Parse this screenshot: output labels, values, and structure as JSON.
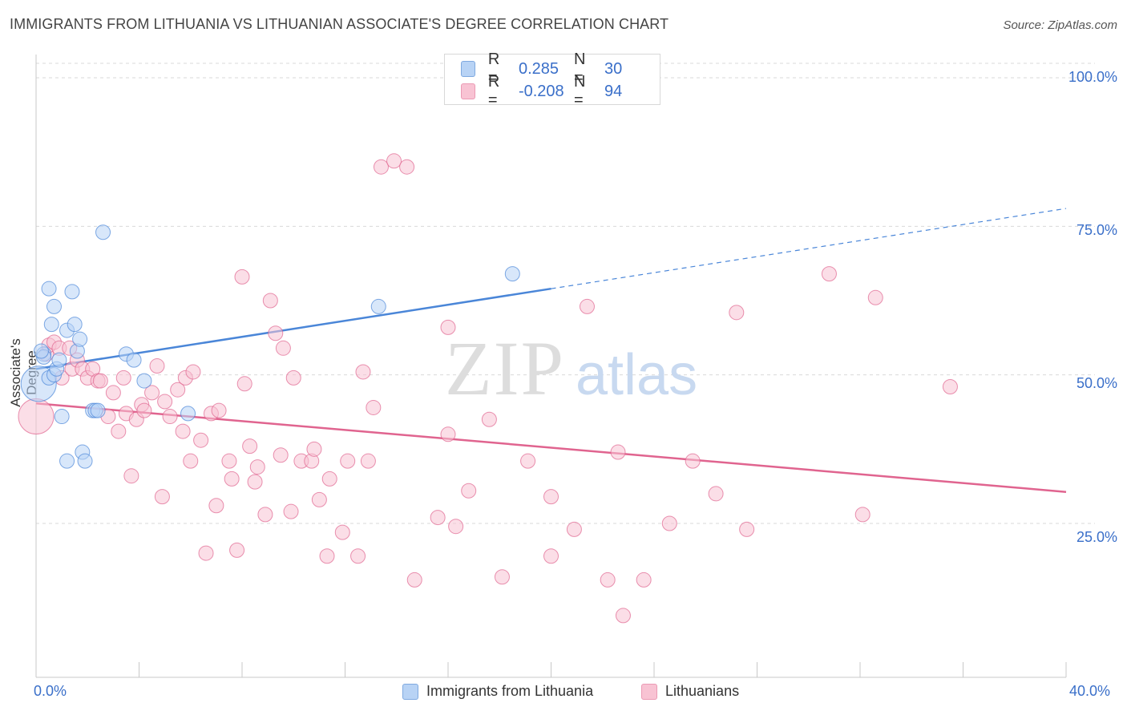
{
  "title": "IMMIGRANTS FROM LITHUANIA VS LITHUANIAN ASSOCIATE'S DEGREE CORRELATION CHART",
  "source": "Source: ZipAtlas.com",
  "watermark": {
    "zip": "ZIP",
    "atlas": "atlas"
  },
  "legend": {
    "rows": [
      {
        "r_label": "R =",
        "r_value": "0.285",
        "n_label": "N =",
        "n_value": "30",
        "color": "#b8d3f5"
      },
      {
        "r_label": "R =",
        "r_value": "-0.208",
        "n_label": "N =",
        "n_value": "94",
        "color": "#f8c3d3"
      }
    ]
  },
  "bottom_legend": [
    {
      "label": "Immigrants from Lithuania",
      "color": "#b8d3f5"
    },
    {
      "label": "Lithuanians",
      "color": "#f8c3d3"
    }
  ],
  "chart_data": {
    "type": "scatter",
    "xlabel": "",
    "ylabel": "Associate's Degree",
    "xlim": [
      0,
      40
    ],
    "ylim": [
      0,
      100
    ],
    "x_tick_labels": [
      "0.0%",
      "40.0%"
    ],
    "y_tick_labels": [
      "100.0%",
      "75.0%",
      "50.0%",
      "25.0%"
    ],
    "y_tick_values": [
      100,
      75,
      50,
      25
    ],
    "grid": true,
    "series": [
      {
        "name": "Immigrants from Lithuania",
        "color": "#4a86d8",
        "fill": "#b8d3f5",
        "points": [
          [
            0.1,
            48.5
          ],
          [
            0.3,
            53.5
          ],
          [
            0.3,
            53.0
          ],
          [
            0.5,
            64.5
          ],
          [
            0.5,
            49.5
          ],
          [
            0.6,
            58.5
          ],
          [
            0.7,
            61.5
          ],
          [
            0.7,
            50.0
          ],
          [
            0.8,
            51.0
          ],
          [
            0.9,
            52.5
          ],
          [
            1.0,
            43.0
          ],
          [
            1.2,
            35.5
          ],
          [
            1.2,
            57.5
          ],
          [
            1.4,
            64.0
          ],
          [
            1.5,
            58.5
          ],
          [
            1.6,
            54.0
          ],
          [
            1.7,
            56.0
          ],
          [
            1.8,
            37.0
          ],
          [
            1.9,
            35.5
          ],
          [
            2.2,
            44.0
          ],
          [
            2.3,
            44.0
          ],
          [
            2.4,
            44.0
          ],
          [
            2.6,
            74.0
          ],
          [
            3.5,
            53.5
          ],
          [
            3.8,
            52.5
          ],
          [
            5.9,
            43.5
          ],
          [
            4.2,
            49.0
          ],
          [
            13.3,
            61.5
          ],
          [
            18.5,
            67.0
          ],
          [
            0.2,
            54.0
          ]
        ],
        "trend": {
          "x0": 0,
          "y0": 51,
          "x_solid_end": 20,
          "y_solid_end": 64.5,
          "x1": 40,
          "y1": 78
        }
      },
      {
        "name": "Lithuanians",
        "color": "#e0648f",
        "fill": "#f8c3d3",
        "points": [
          [
            0.0,
            43.0
          ],
          [
            0.4,
            53.5
          ],
          [
            0.5,
            55.0
          ],
          [
            0.7,
            55.5
          ],
          [
            0.9,
            54.5
          ],
          [
            1.0,
            49.5
          ],
          [
            1.3,
            54.5
          ],
          [
            1.4,
            51.0
          ],
          [
            1.6,
            52.5
          ],
          [
            1.8,
            51.0
          ],
          [
            2.0,
            49.5
          ],
          [
            2.2,
            51.0
          ],
          [
            2.4,
            49.0
          ],
          [
            2.5,
            49.0
          ],
          [
            2.8,
            43.0
          ],
          [
            3.0,
            47.0
          ],
          [
            3.2,
            40.5
          ],
          [
            3.4,
            49.5
          ],
          [
            3.5,
            43.5
          ],
          [
            3.7,
            33.0
          ],
          [
            3.9,
            42.5
          ],
          [
            4.1,
            45.0
          ],
          [
            4.2,
            44.0
          ],
          [
            4.5,
            47.0
          ],
          [
            4.7,
            51.5
          ],
          [
            4.9,
            29.5
          ],
          [
            5.0,
            45.5
          ],
          [
            5.2,
            43.0
          ],
          [
            5.5,
            47.5
          ],
          [
            5.7,
            40.5
          ],
          [
            5.8,
            49.5
          ],
          [
            6.0,
            35.5
          ],
          [
            6.1,
            50.5
          ],
          [
            6.4,
            39.0
          ],
          [
            6.6,
            20.0
          ],
          [
            6.8,
            43.5
          ],
          [
            7.0,
            28.0
          ],
          [
            7.1,
            44.0
          ],
          [
            7.5,
            35.5
          ],
          [
            7.6,
            32.5
          ],
          [
            7.8,
            20.5
          ],
          [
            8.0,
            66.5
          ],
          [
            8.1,
            48.5
          ],
          [
            8.3,
            38.0
          ],
          [
            8.5,
            32.0
          ],
          [
            8.6,
            34.5
          ],
          [
            8.9,
            26.5
          ],
          [
            9.1,
            62.5
          ],
          [
            9.3,
            57.0
          ],
          [
            9.5,
            36.5
          ],
          [
            9.6,
            54.5
          ],
          [
            9.9,
            27.0
          ],
          [
            10.0,
            49.5
          ],
          [
            10.3,
            35.5
          ],
          [
            10.7,
            35.5
          ],
          [
            10.8,
            37.5
          ],
          [
            11.0,
            29.0
          ],
          [
            11.3,
            19.5
          ],
          [
            11.4,
            32.5
          ],
          [
            11.9,
            23.5
          ],
          [
            12.1,
            35.5
          ],
          [
            12.5,
            19.5
          ],
          [
            12.7,
            50.5
          ],
          [
            12.9,
            35.5
          ],
          [
            13.1,
            44.5
          ],
          [
            13.4,
            85.0
          ],
          [
            13.9,
            86.0
          ],
          [
            14.4,
            85.0
          ],
          [
            14.7,
            15.5
          ],
          [
            15.6,
            26.0
          ],
          [
            16.0,
            40.0
          ],
          [
            16.0,
            58.0
          ],
          [
            16.3,
            24.5
          ],
          [
            16.8,
            30.5
          ],
          [
            17.6,
            42.5
          ],
          [
            18.1,
            16.0
          ],
          [
            19.1,
            35.5
          ],
          [
            20.0,
            29.5
          ],
          [
            20.0,
            19.5
          ],
          [
            20.9,
            24.0
          ],
          [
            21.4,
            61.5
          ],
          [
            22.2,
            15.5
          ],
          [
            22.6,
            37.0
          ],
          [
            22.8,
            9.5
          ],
          [
            23.6,
            15.5
          ],
          [
            24.6,
            25.0
          ],
          [
            25.5,
            35.5
          ],
          [
            26.4,
            30.0
          ],
          [
            27.2,
            60.5
          ],
          [
            27.6,
            24.0
          ],
          [
            30.8,
            67.0
          ],
          [
            32.1,
            26.5
          ],
          [
            32.6,
            63.0
          ],
          [
            35.5,
            48.0
          ]
        ],
        "trend": {
          "x0": 0,
          "y0": 45.2,
          "x1": 40,
          "y1": 30.3
        }
      }
    ]
  }
}
